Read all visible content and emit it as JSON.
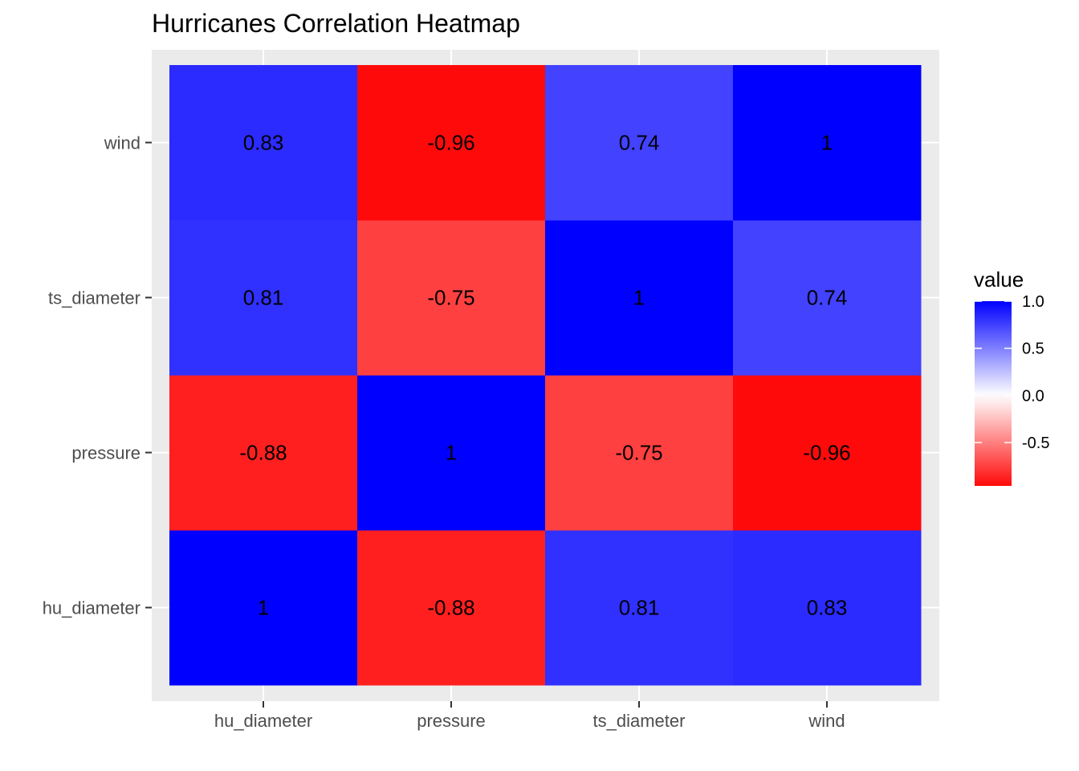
{
  "chart_data": {
    "type": "heatmap",
    "title": "Hurricanes Correlation Heatmap",
    "xlabel": "",
    "ylabel": "",
    "x_categories": [
      "hu_diameter",
      "pressure",
      "ts_diameter",
      "wind"
    ],
    "y_categories": [
      "hu_diameter",
      "pressure",
      "ts_diameter",
      "wind"
    ],
    "values": [
      [
        1,
        -0.88,
        0.81,
        0.83
      ],
      [
        -0.88,
        1,
        -0.75,
        -0.96
      ],
      [
        0.81,
        -0.75,
        1,
        0.74
      ],
      [
        0.83,
        -0.96,
        0.74,
        1
      ]
    ],
    "value_labels": [
      [
        "1",
        "-0.88",
        "0.81",
        "0.83"
      ],
      [
        "-0.88",
        "1",
        "-0.75",
        "-0.96"
      ],
      [
        "0.81",
        "-0.75",
        "1",
        "0.74"
      ],
      [
        "0.83",
        "-0.96",
        "0.74",
        "1"
      ]
    ],
    "color_scale": {
      "low": "#ff0000",
      "mid": "#ffffff",
      "high": "#0000ff",
      "midpoint": 0,
      "limits": [
        -1,
        1
      ]
    },
    "legend": {
      "title": "value",
      "position": "right",
      "ticks": [
        1.0,
        0.5,
        0.0,
        -0.5
      ],
      "tick_labels": [
        "1.0",
        "0.5",
        "0.0",
        "-0.5"
      ],
      "range": [
        -0.96,
        1.0
      ]
    },
    "panel_background": "#ebebeb",
    "grid": true
  }
}
